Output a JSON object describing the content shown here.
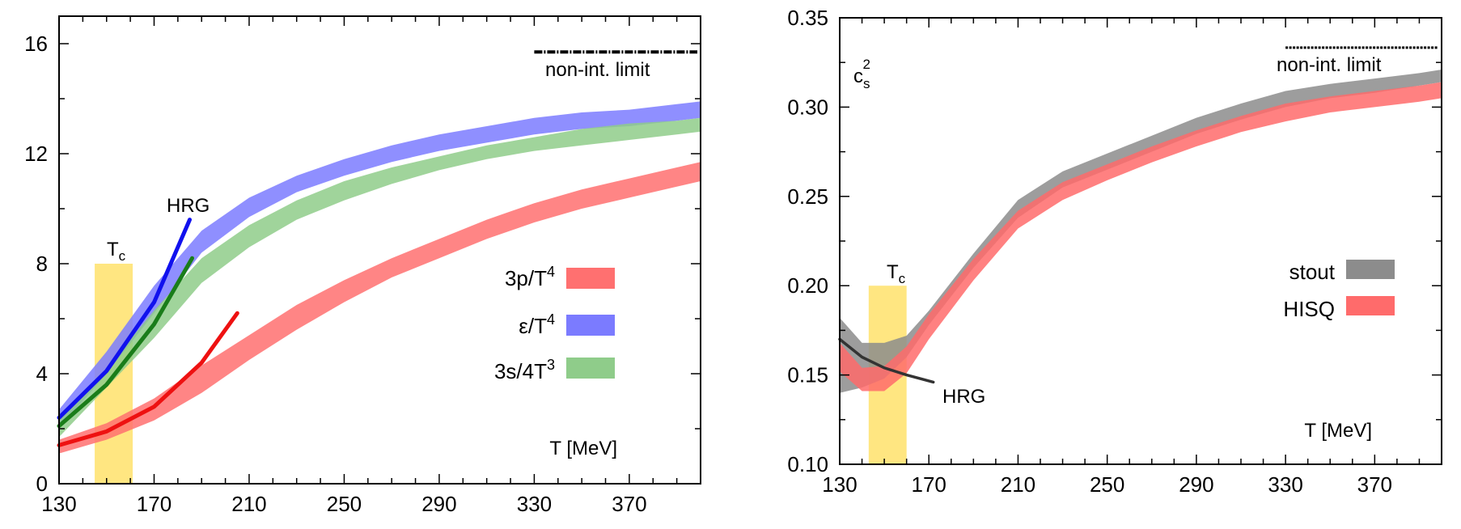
{
  "chart_data": [
    {
      "type": "area",
      "title": "",
      "xlabel": "T [MeV]",
      "ylabel": "",
      "xlim": [
        130,
        400
      ],
      "ylim": [
        0,
        17
      ],
      "x_ticks": [
        "130",
        "170",
        "210",
        "250",
        "290",
        "330",
        "370"
      ],
      "y_ticks": [
        "0",
        "4",
        "8",
        "12",
        "16"
      ],
      "tc_label": "T",
      "tc_sub": "c",
      "tc_band": [
        145,
        161
      ],
      "tc_band_top": 8,
      "limit_label": "non-int. limit",
      "limit_value": 15.7,
      "limit_x": [
        330,
        400
      ],
      "hrg_label": "HRG",
      "legend_position": "center-right",
      "series": [
        {
          "name": "3p/T4",
          "label_main": "3p/T",
          "label_sup": "4",
          "color": "#ff7070",
          "x": [
            130,
            150,
            170,
            190,
            210,
            230,
            250,
            270,
            290,
            310,
            330,
            350,
            370,
            390,
            400
          ],
          "lower": [
            1.1,
            1.6,
            2.3,
            3.3,
            4.5,
            5.6,
            6.6,
            7.5,
            8.2,
            8.9,
            9.5,
            10.0,
            10.4,
            10.8,
            11.0
          ],
          "upper": [
            1.6,
            2.2,
            3.1,
            4.3,
            5.4,
            6.5,
            7.4,
            8.2,
            8.9,
            9.6,
            10.2,
            10.7,
            11.1,
            11.5,
            11.7
          ]
        },
        {
          "name": "eps/T4",
          "label_main": "ε/T",
          "label_sup": "4",
          "color": "#7b7bff",
          "x": [
            130,
            150,
            170,
            190,
            210,
            230,
            250,
            270,
            290,
            310,
            330,
            350,
            370,
            390,
            400
          ],
          "lower": [
            2.0,
            4.0,
            6.2,
            8.4,
            9.7,
            10.6,
            11.2,
            11.7,
            12.1,
            12.4,
            12.7,
            12.9,
            13.0,
            13.2,
            13.3
          ],
          "upper": [
            2.7,
            4.8,
            7.2,
            9.2,
            10.4,
            11.2,
            11.8,
            12.3,
            12.7,
            13.0,
            13.3,
            13.5,
            13.6,
            13.8,
            13.9
          ]
        },
        {
          "name": "3s/4T3",
          "label_main": "3s/4T",
          "label_sup": "3",
          "color": "#8fcc8a",
          "x": [
            130,
            150,
            170,
            190,
            210,
            230,
            250,
            270,
            290,
            310,
            330,
            350,
            370,
            390,
            400
          ],
          "lower": [
            1.7,
            3.5,
            5.3,
            7.3,
            8.6,
            9.6,
            10.3,
            10.9,
            11.4,
            11.8,
            12.1,
            12.3,
            12.5,
            12.7,
            12.8
          ],
          "upper": [
            2.3,
            4.2,
            6.3,
            8.2,
            9.4,
            10.3,
            11.0,
            11.5,
            11.9,
            12.3,
            12.6,
            12.9,
            13.1,
            13.2,
            13.3
          ]
        }
      ],
      "hrg_curves": [
        {
          "color": "#ee1111",
          "x": [
            130,
            150,
            170,
            190,
            205
          ],
          "y": [
            1.4,
            1.9,
            2.8,
            4.4,
            6.2
          ]
        },
        {
          "color": "#1111ee",
          "x": [
            130,
            150,
            170,
            185
          ],
          "y": [
            2.4,
            4.1,
            6.6,
            9.6
          ]
        },
        {
          "color": "#1a7d1a",
          "x": [
            130,
            150,
            170,
            186
          ],
          "y": [
            2.1,
            3.6,
            5.8,
            8.2
          ]
        }
      ]
    },
    {
      "type": "area",
      "title": "",
      "xlabel": "T [MeV]",
      "ylabel": "c",
      "ylabel_sub": "s",
      "ylabel_sup": "2",
      "xlim": [
        130,
        400
      ],
      "ylim": [
        0.1,
        0.35
      ],
      "x_ticks": [
        "130",
        "170",
        "210",
        "250",
        "290",
        "330",
        "370"
      ],
      "y_ticks": [
        "0.10",
        "0.15",
        "0.20",
        "0.25",
        "0.30",
        "0.35"
      ],
      "tc_label": "T",
      "tc_sub": "c",
      "tc_band": [
        143,
        160
      ],
      "tc_band_top": 0.2,
      "limit_label": "non-int. limit",
      "limit_value": 0.3333,
      "limit_x": [
        330,
        400
      ],
      "hrg_label": "HRG",
      "legend_position": "center-right",
      "series": [
        {
          "name": "stout",
          "label_main": "stout",
          "color": "#8c8c8c",
          "x": [
            130,
            140,
            150,
            160,
            170,
            190,
            210,
            230,
            250,
            270,
            290,
            310,
            330,
            350,
            370,
            390,
            400
          ],
          "lower": [
            0.14,
            0.143,
            0.148,
            0.16,
            0.178,
            0.21,
            0.238,
            0.255,
            0.265,
            0.275,
            0.285,
            0.293,
            0.3,
            0.305,
            0.308,
            0.312,
            0.314
          ],
          "upper": [
            0.182,
            0.168,
            0.168,
            0.172,
            0.186,
            0.218,
            0.248,
            0.264,
            0.274,
            0.284,
            0.294,
            0.302,
            0.309,
            0.313,
            0.316,
            0.319,
            0.321
          ]
        },
        {
          "name": "HISQ",
          "label_main": "HISQ",
          "color": "#ff6b6b",
          "x": [
            130,
            140,
            150,
            160,
            170,
            190,
            210,
            230,
            250,
            270,
            290,
            310,
            330,
            350,
            370,
            390,
            400
          ],
          "lower": [
            0.152,
            0.141,
            0.141,
            0.151,
            0.17,
            0.203,
            0.232,
            0.248,
            0.259,
            0.269,
            0.278,
            0.286,
            0.292,
            0.297,
            0.3,
            0.303,
            0.305
          ],
          "upper": [
            0.168,
            0.154,
            0.155,
            0.166,
            0.184,
            0.215,
            0.242,
            0.258,
            0.268,
            0.278,
            0.287,
            0.295,
            0.302,
            0.306,
            0.309,
            0.312,
            0.314
          ]
        }
      ],
      "hrg_curves": [
        {
          "color": "#333333",
          "x": [
            130,
            140,
            150,
            160,
            172
          ],
          "y": [
            0.17,
            0.16,
            0.154,
            0.15,
            0.146
          ]
        }
      ]
    }
  ]
}
